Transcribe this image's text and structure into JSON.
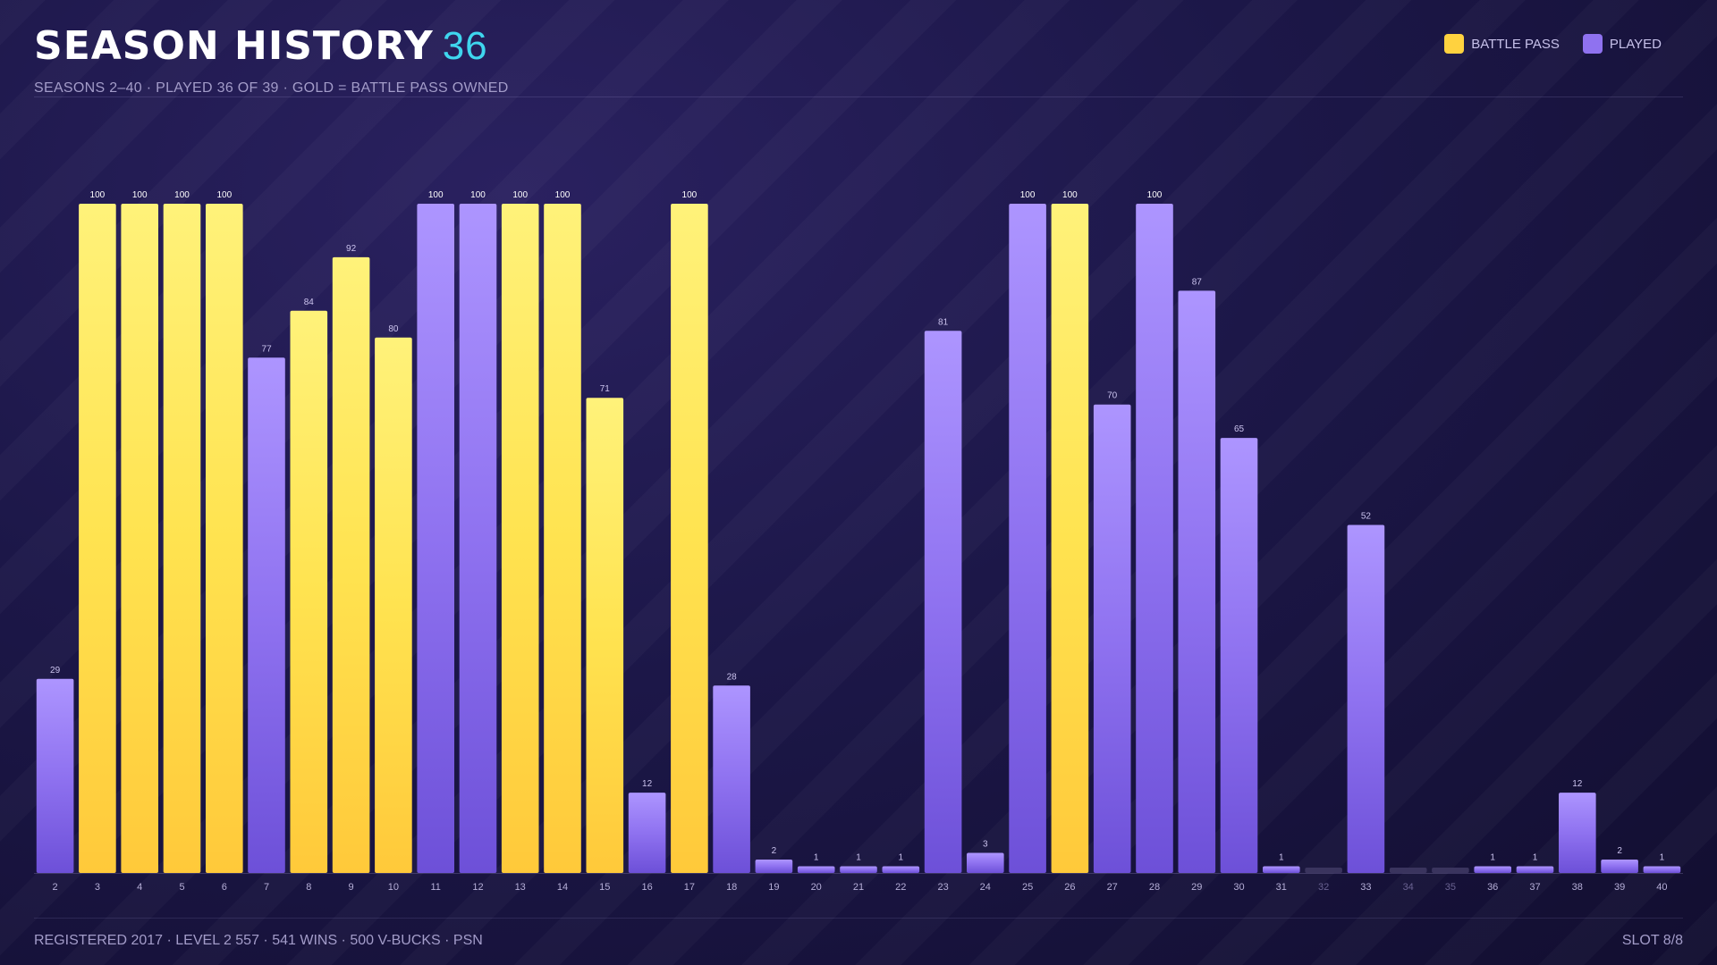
{
  "header": {
    "title": "SEASON HISTORY",
    "count": "36",
    "subtitle": "SEASONS 2–40  ·  PLAYED 36 OF 39  ·  GOLD = BATTLE PASS OWNED"
  },
  "legend": {
    "items": [
      {
        "label": "BATTLE PASS",
        "color": "#ffd23f"
      },
      {
        "label": "PLAYED",
        "color": "#8f72f0"
      }
    ]
  },
  "footer": {
    "info": "REGISTERED 2017  ·  LEVEL 2 557  ·  541 WINS  ·  500 V-BUCKS  ·  PSN",
    "slot": "SLOT 8/8"
  },
  "chart_data": {
    "type": "bar",
    "ylim": [
      0,
      100
    ],
    "categories": [
      "2",
      "3",
      "4",
      "5",
      "6",
      "7",
      "8",
      "9",
      "10",
      "11",
      "12",
      "13",
      "14",
      "15",
      "16",
      "17",
      "18",
      "19",
      "20",
      "21",
      "22",
      "23",
      "24",
      "25",
      "26",
      "27",
      "28",
      "29",
      "30",
      "31",
      "32",
      "33",
      "34",
      "35",
      "36",
      "37",
      "38",
      "39",
      "40"
    ],
    "values": [
      29,
      100,
      100,
      100,
      100,
      77,
      84,
      92,
      80,
      100,
      100,
      100,
      100,
      71,
      12,
      100,
      28,
      2,
      1,
      1,
      1,
      81,
      3,
      100,
      100,
      70,
      100,
      87,
      65,
      1,
      null,
      52,
      null,
      null,
      1,
      1,
      12,
      2,
      1
    ],
    "battle_pass": [
      false,
      true,
      true,
      true,
      true,
      false,
      true,
      true,
      true,
      false,
      false,
      true,
      true,
      true,
      false,
      true,
      false,
      false,
      false,
      false,
      false,
      false,
      false,
      false,
      true,
      false,
      false,
      false,
      false,
      false,
      false,
      false,
      false,
      false,
      false,
      false,
      false,
      false,
      false
    ],
    "colors": {
      "battle_pass": "#ffd23f",
      "played": "#8f72f0",
      "not_played": "#3a345e"
    }
  }
}
